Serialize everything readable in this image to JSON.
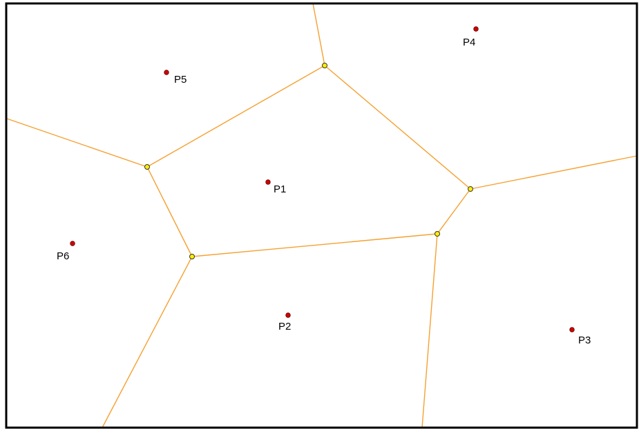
{
  "points": [
    {
      "label": "P1"
    },
    {
      "label": "P2"
    },
    {
      "label": "P3"
    },
    {
      "label": "P4"
    },
    {
      "label": "P5"
    },
    {
      "label": "P6"
    }
  ]
}
